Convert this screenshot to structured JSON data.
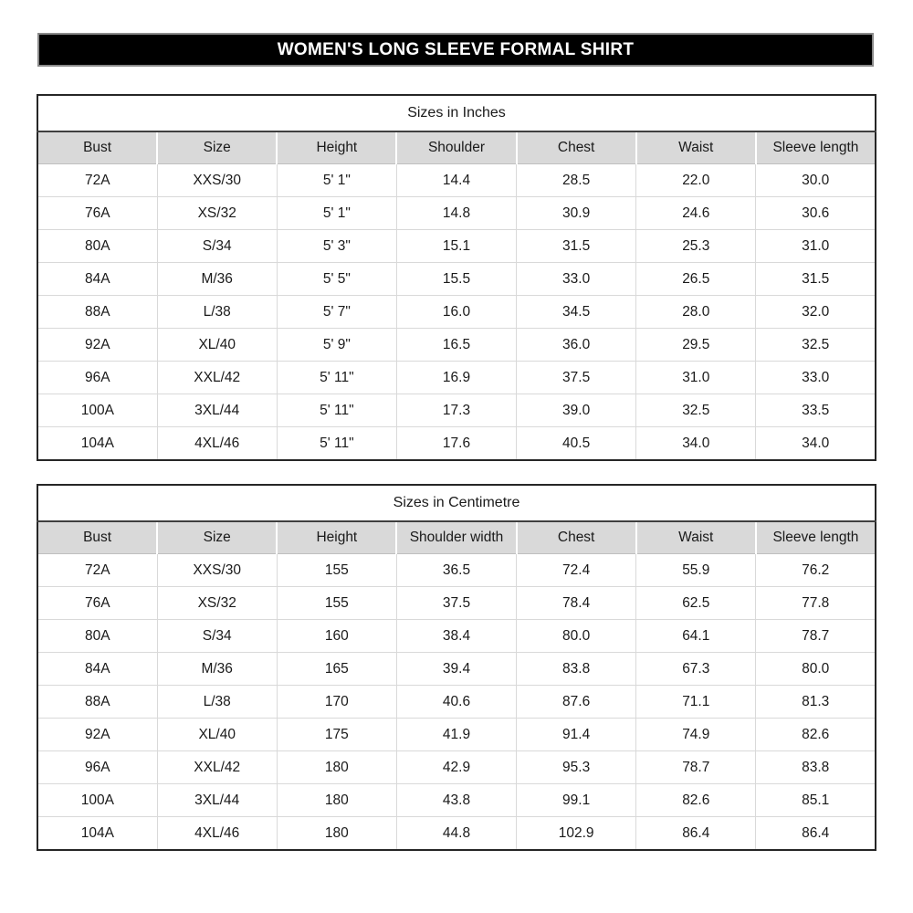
{
  "banner": {
    "title": "WOMEN'S LONG SLEEVE FORMAL SHIRT"
  },
  "colors": {
    "banner_bg": "#000000",
    "banner_border": "#8a8a8a",
    "header_bg": "#d9d9d9",
    "grid_line": "#d9d9d9",
    "outer_border": "#262626",
    "text": "#1a1a1a"
  },
  "tables": [
    {
      "title": "Sizes in Inches",
      "columns": [
        "Bust",
        "Size",
        "Height",
        "Shoulder",
        "Chest",
        "Waist",
        "Sleeve length"
      ],
      "rows": [
        [
          "72A",
          "XXS/30",
          "5' 1\"",
          "14.4",
          "28.5",
          "22.0",
          "30.0"
        ],
        [
          "76A",
          "XS/32",
          "5' 1\"",
          "14.8",
          "30.9",
          "24.6",
          "30.6"
        ],
        [
          "80A",
          "S/34",
          "5' 3\"",
          "15.1",
          "31.5",
          "25.3",
          "31.0"
        ],
        [
          "84A",
          "M/36",
          "5' 5\"",
          "15.5",
          "33.0",
          "26.5",
          "31.5"
        ],
        [
          "88A",
          "L/38",
          "5' 7\"",
          "16.0",
          "34.5",
          "28.0",
          "32.0"
        ],
        [
          "92A",
          "XL/40",
          "5' 9\"",
          "16.5",
          "36.0",
          "29.5",
          "32.5"
        ],
        [
          "96A",
          "XXL/42",
          "5' 11\"",
          "16.9",
          "37.5",
          "31.0",
          "33.0"
        ],
        [
          "100A",
          "3XL/44",
          "5' 11\"",
          "17.3",
          "39.0",
          "32.5",
          "33.5"
        ],
        [
          "104A",
          "4XL/46",
          "5' 11\"",
          "17.6",
          "40.5",
          "34.0",
          "34.0"
        ]
      ]
    },
    {
      "title": "Sizes in Centimetre",
      "columns": [
        "Bust",
        "Size",
        "Height",
        "Shoulder width",
        "Chest",
        "Waist",
        "Sleeve length"
      ],
      "rows": [
        [
          "72A",
          "XXS/30",
          "155",
          "36.5",
          "72.4",
          "55.9",
          "76.2"
        ],
        [
          "76A",
          "XS/32",
          "155",
          "37.5",
          "78.4",
          "62.5",
          "77.8"
        ],
        [
          "80A",
          "S/34",
          "160",
          "38.4",
          "80.0",
          "64.1",
          "78.7"
        ],
        [
          "84A",
          "M/36",
          "165",
          "39.4",
          "83.8",
          "67.3",
          "80.0"
        ],
        [
          "88A",
          "L/38",
          "170",
          "40.6",
          "87.6",
          "71.1",
          "81.3"
        ],
        [
          "92A",
          "XL/40",
          "175",
          "41.9",
          "91.4",
          "74.9",
          "82.6"
        ],
        [
          "96A",
          "XXL/42",
          "180",
          "42.9",
          "95.3",
          "78.7",
          "83.8"
        ],
        [
          "100A",
          "3XL/44",
          "180",
          "43.8",
          "99.1",
          "82.6",
          "85.1"
        ],
        [
          "104A",
          "4XL/46",
          "180",
          "44.8",
          "102.9",
          "86.4",
          "86.4"
        ]
      ]
    }
  ]
}
